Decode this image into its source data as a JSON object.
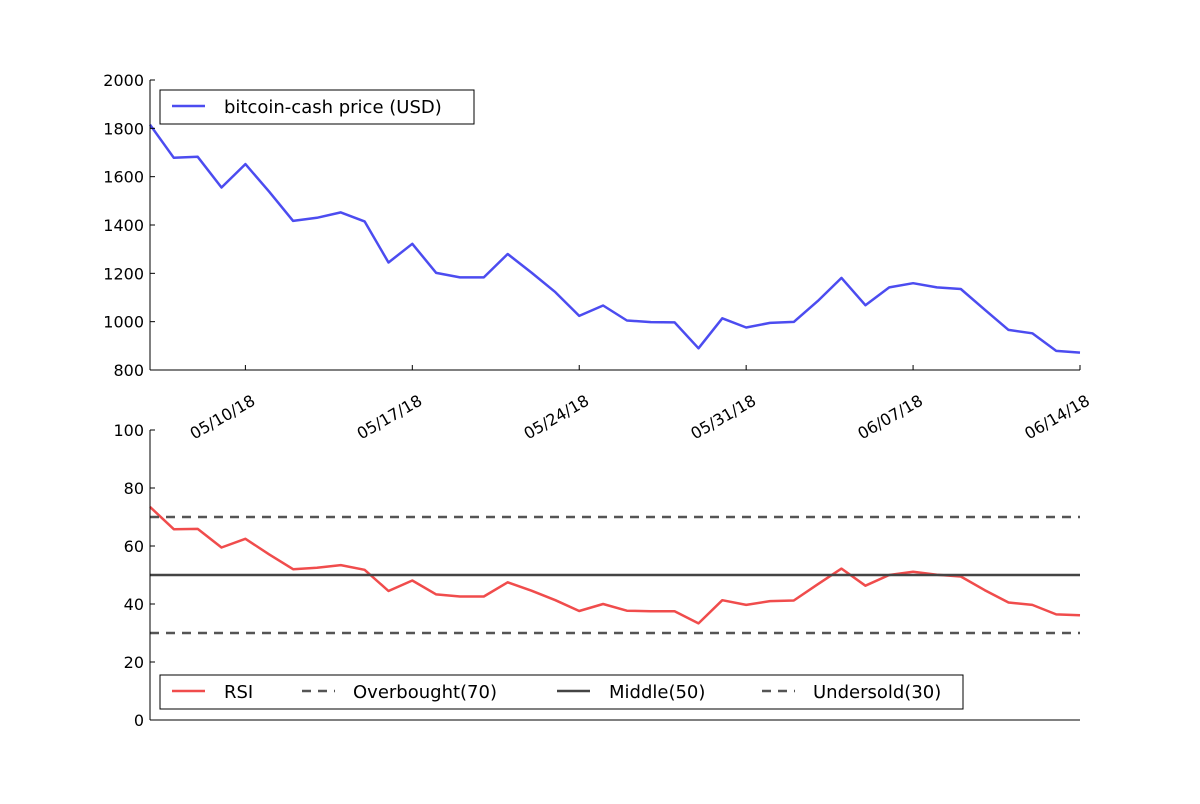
{
  "chart_data": [
    {
      "type": "line",
      "title": "",
      "xlabel": "",
      "ylabel": "",
      "ylim": [
        800,
        2000
      ],
      "yticks": [
        800,
        1000,
        1200,
        1400,
        1600,
        1800,
        2000
      ],
      "x_tick_labels": [
        "05/10/18",
        "05/17/18",
        "05/24/18",
        "05/31/18",
        "06/07/18",
        "06/14/18"
      ],
      "x_tick_dates": [
        "2018-05-10",
        "2018-05-17",
        "2018-05-24",
        "2018-05-31",
        "2018-06-07",
        "2018-06-14"
      ],
      "xlim": [
        "2018-05-06",
        "2018-06-14"
      ],
      "legend_position": "upper-left",
      "grid": false,
      "series": [
        {
          "name": "bitcoin-cash price (USD)",
          "color": "#4c4cf0",
          "x": [
            "2018-05-06",
            "2018-05-07",
            "2018-05-08",
            "2018-05-09",
            "2018-05-10",
            "2018-05-11",
            "2018-05-12",
            "2018-05-13",
            "2018-05-14",
            "2018-05-15",
            "2018-05-16",
            "2018-05-17",
            "2018-05-18",
            "2018-05-19",
            "2018-05-20",
            "2018-05-21",
            "2018-05-22",
            "2018-05-23",
            "2018-05-24",
            "2018-05-25",
            "2018-05-26",
            "2018-05-27",
            "2018-05-28",
            "2018-05-29",
            "2018-05-30",
            "2018-05-31",
            "2018-06-01",
            "2018-06-02",
            "2018-06-03",
            "2018-06-04",
            "2018-06-05",
            "2018-06-06",
            "2018-06-07",
            "2018-06-08",
            "2018-06-09",
            "2018-06-10",
            "2018-06-11",
            "2018-06-12",
            "2018-06-13",
            "2018-06-14"
          ],
          "values": [
            1815,
            1678,
            1682,
            1555,
            1652,
            1538,
            1417,
            1430,
            1452,
            1415,
            1245,
            1322,
            1202,
            1183,
            1183,
            1280,
            1203,
            1122,
            1024,
            1067,
            1005,
            998,
            997,
            890,
            1014,
            976,
            995,
            999,
            1085,
            1181,
            1068,
            1142,
            1159,
            1142,
            1135,
            1050,
            966,
            952,
            879,
            872
          ]
        }
      ]
    },
    {
      "type": "line",
      "title": "",
      "xlabel": "",
      "ylabel": "",
      "ylim": [
        0,
        100
      ],
      "yticks": [
        0,
        20,
        40,
        60,
        80,
        100
      ],
      "xlim": [
        "2018-05-06",
        "2018-06-14"
      ],
      "legend_position": "lower-left",
      "grid": false,
      "series": [
        {
          "name": "RSI",
          "color": "#f04c4c",
          "style": "solid",
          "x": [
            "2018-05-06",
            "2018-05-07",
            "2018-05-08",
            "2018-05-09",
            "2018-05-10",
            "2018-05-11",
            "2018-05-12",
            "2018-05-13",
            "2018-05-14",
            "2018-05-15",
            "2018-05-16",
            "2018-05-17",
            "2018-05-18",
            "2018-05-19",
            "2018-05-20",
            "2018-05-21",
            "2018-05-22",
            "2018-05-23",
            "2018-05-24",
            "2018-05-25",
            "2018-05-26",
            "2018-05-27",
            "2018-05-28",
            "2018-05-29",
            "2018-05-30",
            "2018-05-31",
            "2018-06-01",
            "2018-06-02",
            "2018-06-03",
            "2018-06-04",
            "2018-06-05",
            "2018-06-06",
            "2018-06-07",
            "2018-06-08",
            "2018-06-09",
            "2018-06-10",
            "2018-06-11",
            "2018-06-12",
            "2018-06-13",
            "2018-06-14"
          ],
          "values": [
            73.5,
            65.8,
            65.9,
            59.5,
            62.5,
            57.1,
            52.0,
            52.5,
            53.4,
            51.8,
            44.5,
            48.1,
            43.3,
            42.6,
            42.6,
            47.5,
            44.6,
            41.3,
            37.6,
            40.0,
            37.7,
            37.5,
            37.5,
            33.3,
            41.3,
            39.7,
            41.0,
            41.2,
            46.8,
            52.2,
            46.3,
            50.0,
            51.1,
            50.1,
            49.5,
            44.8,
            40.5,
            39.7,
            36.4,
            36.1
          ]
        },
        {
          "name": "Overbought(70)",
          "color": "#555555",
          "style": "dashed",
          "constant": 70
        },
        {
          "name": "Middle(50)",
          "color": "#444444",
          "style": "solid",
          "constant": 50
        },
        {
          "name": "Undersold(30)",
          "color": "#555555",
          "style": "dashed",
          "constant": 30
        }
      ]
    }
  ]
}
